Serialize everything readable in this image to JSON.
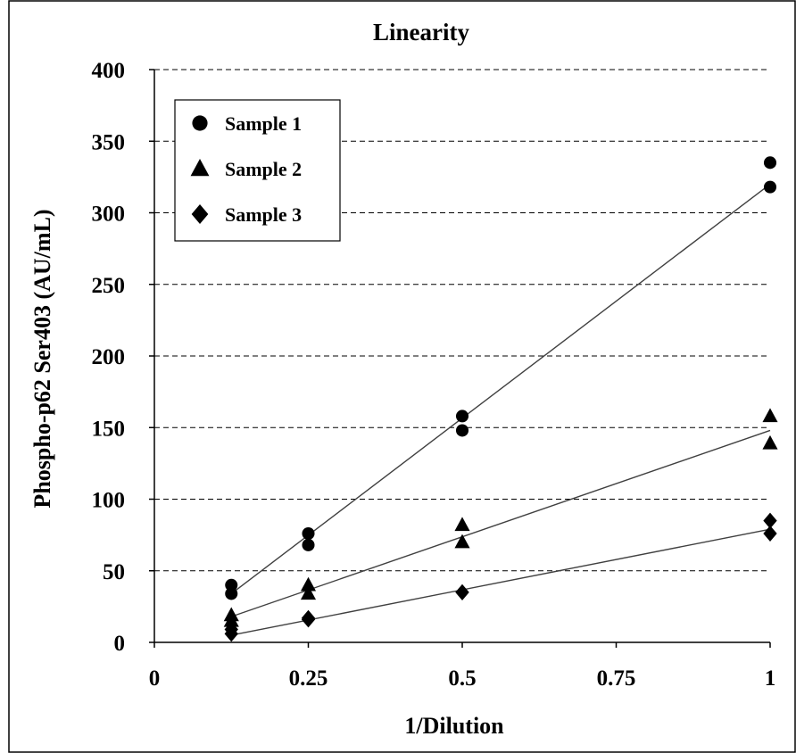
{
  "chart_data": {
    "type": "scatter",
    "title": "Linearity",
    "xlabel": "1/Dilution",
    "ylabel": "Phospho-p62 Ser403 (AU/mL)",
    "xlim": [
      0,
      1
    ],
    "ylim": [
      0,
      400
    ],
    "x_ticks": [
      "0",
      "0.25",
      "0.5",
      "0.75",
      "1"
    ],
    "x_tick_values": [
      0,
      0.25,
      0.5,
      0.75,
      1
    ],
    "y_ticks": [
      "0",
      "50",
      "100",
      "150",
      "200",
      "250",
      "300",
      "350",
      "400"
    ],
    "y_tick_values": [
      0,
      50,
      100,
      150,
      200,
      250,
      300,
      350,
      400
    ],
    "grid": "horizontal dashed",
    "legend_position": "top-left",
    "series": [
      {
        "name": "Sample 1",
        "marker": "circle",
        "points": [
          [
            0.125,
            40
          ],
          [
            0.125,
            34
          ],
          [
            0.25,
            76
          ],
          [
            0.25,
            68
          ],
          [
            0.5,
            158
          ],
          [
            0.5,
            148
          ],
          [
            1,
            335
          ],
          [
            1,
            318
          ]
        ],
        "fit": [
          [
            0.125,
            34
          ],
          [
            1,
            320
          ]
        ]
      },
      {
        "name": "Sample 2",
        "marker": "triangle",
        "points": [
          [
            0.125,
            19
          ],
          [
            0.125,
            15
          ],
          [
            0.25,
            40
          ],
          [
            0.25,
            34
          ],
          [
            0.5,
            82
          ],
          [
            0.5,
            70
          ],
          [
            1,
            158
          ],
          [
            1,
            139
          ]
        ],
        "fit": [
          [
            0.125,
            18
          ],
          [
            1,
            148
          ]
        ]
      },
      {
        "name": "Sample 3",
        "marker": "diamond",
        "points": [
          [
            0.125,
            9
          ],
          [
            0.125,
            6
          ],
          [
            0.25,
            17
          ],
          [
            0.25,
            16
          ],
          [
            0.5,
            35
          ],
          [
            0.5,
            35
          ],
          [
            1,
            85
          ],
          [
            1,
            76
          ]
        ],
        "fit": [
          [
            0.125,
            5
          ],
          [
            1,
            79
          ]
        ]
      }
    ],
    "colors": {
      "marker": "#000000",
      "fit_line": "#404040",
      "grid": "#000000"
    }
  }
}
